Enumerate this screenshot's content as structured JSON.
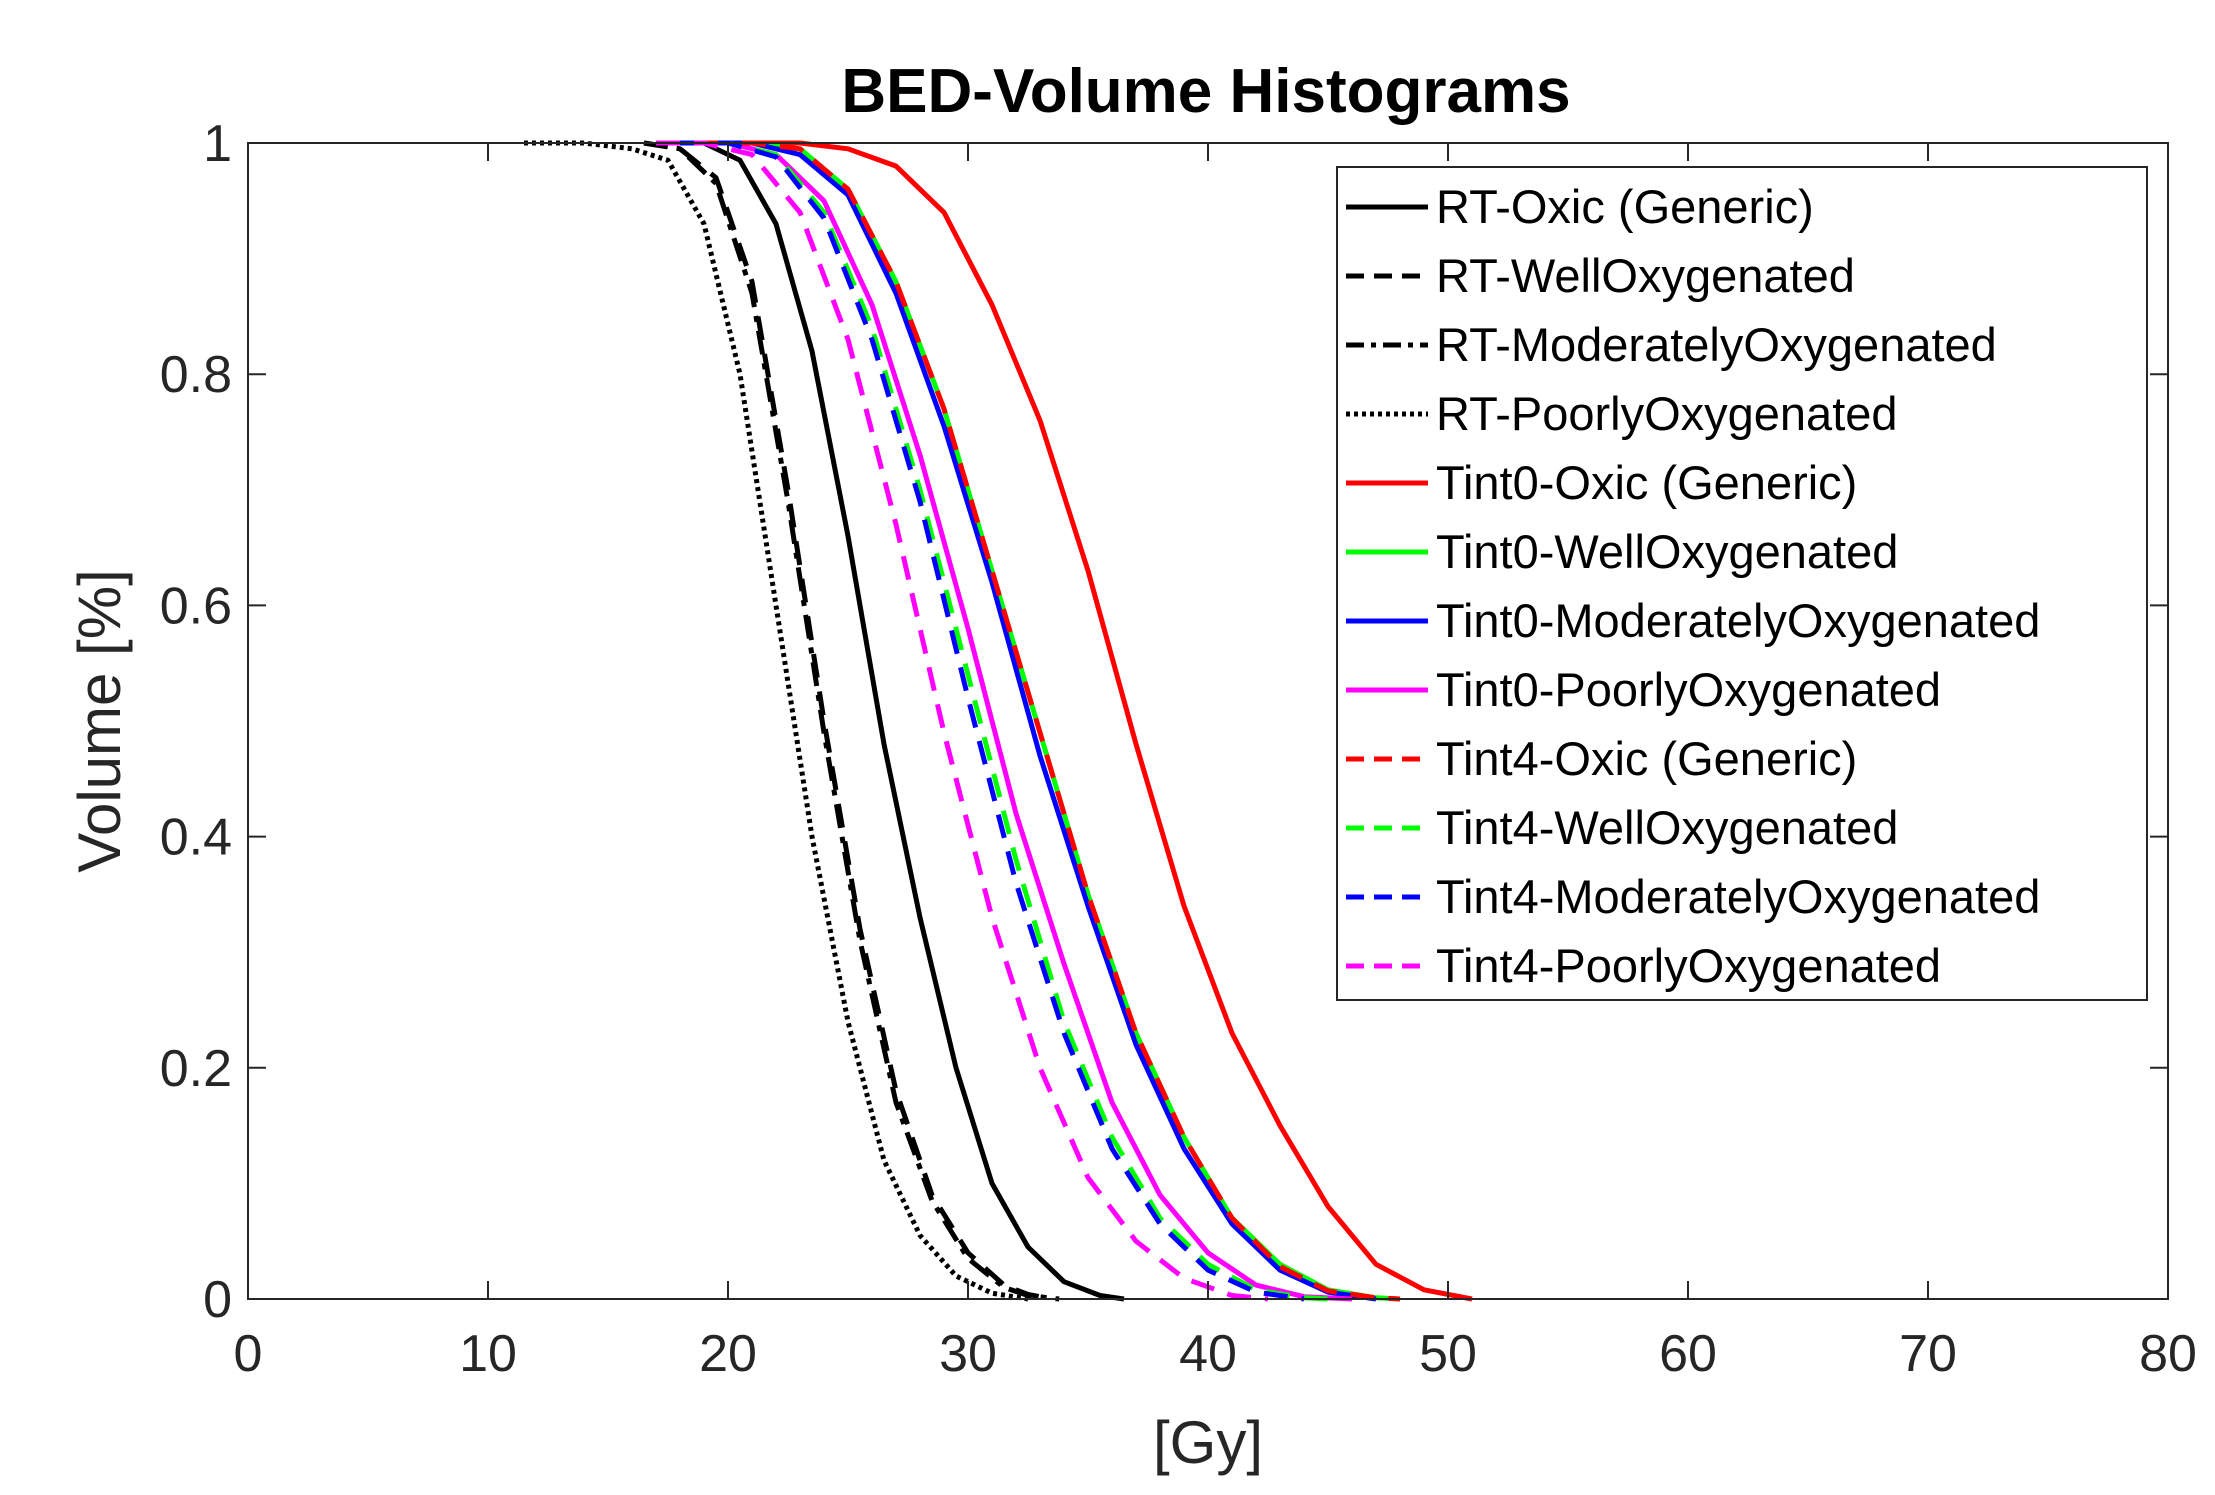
{
  "chart_data": {
    "type": "line",
    "title": "BED-Volume Histograms",
    "xlabel": "[Gy]",
    "ylabel": "Volume [%]",
    "xlim": [
      0,
      80
    ],
    "ylim": [
      0,
      1
    ],
    "xticks": [
      0,
      10,
      20,
      30,
      40,
      50,
      60,
      70,
      80
    ],
    "xtick_labels": [
      "0",
      "10",
      "20",
      "30",
      "40",
      "50",
      "60",
      "70",
      "80"
    ],
    "yticks": [
      0,
      0.2,
      0.4,
      0.6,
      0.8,
      1
    ],
    "ytick_labels": [
      "0",
      "0.2",
      "0.4",
      "0.6",
      "0.8",
      "1"
    ],
    "grid": false,
    "legend_position": "top-right",
    "series": [
      {
        "name": "RT-Oxic (Generic)",
        "color": "#000000",
        "style": "solid",
        "x": [
          17.5,
          19,
          20.5,
          22,
          23.5,
          25,
          26.5,
          28,
          29.5,
          31,
          32.5,
          34,
          35.5,
          36.5
        ],
        "y": [
          1.0,
          1.0,
          0.985,
          0.93,
          0.82,
          0.66,
          0.48,
          0.33,
          0.2,
          0.1,
          0.045,
          0.015,
          0.003,
          0.0
        ]
      },
      {
        "name": "RT-WellOxygenated",
        "color": "#000000",
        "style": "dashed",
        "x": [
          16.5,
          18,
          19.5,
          21,
          22.5,
          24,
          25.5,
          27,
          28.5,
          30,
          31.5,
          32.5,
          33.5
        ],
        "y": [
          1.0,
          0.995,
          0.97,
          0.88,
          0.7,
          0.5,
          0.32,
          0.18,
          0.09,
          0.04,
          0.012,
          0.004,
          0.0
        ]
      },
      {
        "name": "RT-ModeratelyOxygenated",
        "color": "#000000",
        "style": "dashdot",
        "x": [
          16.5,
          18,
          19.5,
          21,
          22.5,
          24,
          25.5,
          27,
          28.5,
          30,
          31.5,
          32.5,
          33.8
        ],
        "y": [
          1.0,
          0.995,
          0.965,
          0.87,
          0.69,
          0.49,
          0.31,
          0.17,
          0.085,
          0.035,
          0.01,
          0.003,
          0.0
        ]
      },
      {
        "name": "RT-PoorlyOxygenated",
        "color": "#000000",
        "style": "dotted",
        "x": [
          11.5,
          14,
          16,
          17.5,
          19,
          20.5,
          22,
          23.5,
          25,
          26.5,
          28,
          29.5,
          31,
          32.5
        ],
        "y": [
          1.0,
          1.0,
          0.995,
          0.985,
          0.93,
          0.8,
          0.6,
          0.4,
          0.24,
          0.12,
          0.055,
          0.02,
          0.005,
          0.0
        ]
      },
      {
        "name": "Tint0-Oxic (Generic)",
        "color": "#ff0000",
        "style": "solid",
        "x": [
          21,
          23,
          25,
          27,
          29,
          31,
          33,
          35,
          37,
          39,
          41,
          43,
          45,
          47,
          49,
          51
        ],
        "y": [
          1.0,
          1.0,
          0.995,
          0.98,
          0.94,
          0.86,
          0.76,
          0.63,
          0.48,
          0.34,
          0.23,
          0.15,
          0.08,
          0.03,
          0.008,
          0.0
        ]
      },
      {
        "name": "Tint0-WellOxygenated",
        "color": "#00ff00",
        "style": "solid",
        "x": [
          19,
          21,
          23,
          25,
          27,
          29,
          31,
          33,
          35,
          37,
          39,
          41,
          43,
          45,
          47,
          48
        ],
        "y": [
          1.0,
          1.0,
          0.995,
          0.96,
          0.88,
          0.77,
          0.63,
          0.49,
          0.35,
          0.23,
          0.14,
          0.07,
          0.03,
          0.008,
          0.001,
          0.0
        ]
      },
      {
        "name": "Tint0-ModeratelyOxygenated",
        "color": "#0000ff",
        "style": "solid",
        "x": [
          19,
          21,
          23,
          25,
          27,
          29,
          31,
          33,
          35,
          37,
          39,
          41,
          43,
          45,
          47
        ],
        "y": [
          1.0,
          1.0,
          0.99,
          0.955,
          0.87,
          0.755,
          0.62,
          0.47,
          0.34,
          0.22,
          0.13,
          0.065,
          0.025,
          0.006,
          0.0
        ]
      },
      {
        "name": "Tint0-PoorlyOxygenated",
        "color": "#ff00ff",
        "style": "solid",
        "x": [
          18,
          20,
          22,
          24,
          26,
          28,
          30,
          32,
          34,
          36,
          38,
          40,
          42,
          44,
          46
        ],
        "y": [
          1.0,
          1.0,
          0.99,
          0.95,
          0.86,
          0.73,
          0.58,
          0.42,
          0.29,
          0.17,
          0.09,
          0.04,
          0.012,
          0.002,
          0.0
        ]
      },
      {
        "name": "Tint4-Oxic (Generic)",
        "color": "#ff0000",
        "style": "dashed",
        "x": [
          19,
          21,
          23,
          25,
          27,
          29,
          31,
          33,
          35,
          37,
          39,
          41,
          43,
          45,
          47,
          48
        ],
        "y": [
          1.0,
          1.0,
          0.995,
          0.96,
          0.88,
          0.77,
          0.63,
          0.49,
          0.35,
          0.23,
          0.14,
          0.07,
          0.028,
          0.007,
          0.001,
          0.0
        ]
      },
      {
        "name": "Tint4-WellOxygenated",
        "color": "#00ff00",
        "style": "dashed",
        "x": [
          18,
          20,
          22,
          24,
          26,
          28,
          30,
          32,
          34,
          36,
          38,
          40,
          42,
          44,
          45
        ],
        "y": [
          1.0,
          1.0,
          0.99,
          0.94,
          0.84,
          0.7,
          0.54,
          0.38,
          0.24,
          0.14,
          0.07,
          0.03,
          0.008,
          0.001,
          0.0
        ]
      },
      {
        "name": "Tint4-ModeratelyOxygenated",
        "color": "#0000ff",
        "style": "dashed",
        "x": [
          18,
          20,
          22,
          24,
          26,
          28,
          30,
          32,
          34,
          36,
          38,
          40,
          42,
          44
        ],
        "y": [
          1.0,
          1.0,
          0.988,
          0.935,
          0.83,
          0.69,
          0.52,
          0.36,
          0.23,
          0.13,
          0.065,
          0.025,
          0.006,
          0.0
        ]
      },
      {
        "name": "Tint4-PoorlyOxygenated",
        "color": "#ff00ff",
        "style": "dashed",
        "x": [
          17,
          19,
          21,
          23,
          25,
          27,
          29,
          31,
          33,
          35,
          37,
          39,
          41,
          42.5
        ],
        "y": [
          1.0,
          1.0,
          0.99,
          0.94,
          0.83,
          0.67,
          0.49,
          0.33,
          0.2,
          0.105,
          0.05,
          0.018,
          0.003,
          0.0
        ]
      }
    ]
  }
}
